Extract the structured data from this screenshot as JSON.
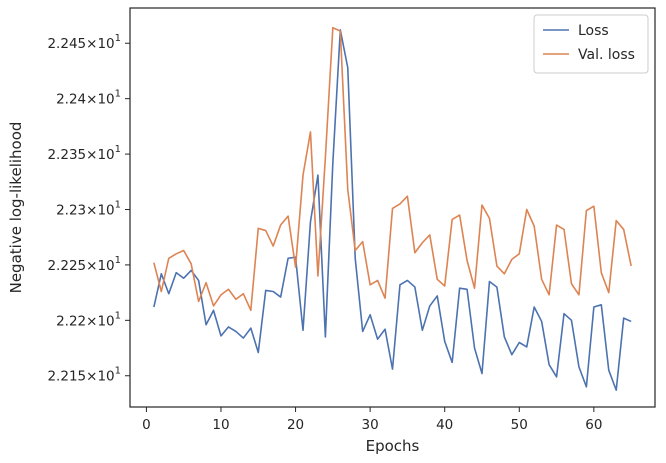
{
  "chart_data": {
    "type": "line",
    "xlabel": "Epochs",
    "ylabel": "Negative log-likelihood",
    "xlim": [
      -2.2,
      68.2
    ],
    "ylim": [
      22.1218,
      22.4818
    ],
    "xticks": [
      0,
      10,
      20,
      30,
      40,
      50,
      60
    ],
    "yticks": [
      {
        "value": 22.15,
        "mantissa": "2.215",
        "base": "10",
        "exp": "1"
      },
      {
        "value": 22.2,
        "mantissa": "2.22",
        "base": "10",
        "exp": "1"
      },
      {
        "value": 22.25,
        "mantissa": "2.225",
        "base": "10",
        "exp": "1"
      },
      {
        "value": 22.3,
        "mantissa": "2.23",
        "base": "10",
        "exp": "1"
      },
      {
        "value": 22.35,
        "mantissa": "2.235",
        "base": "10",
        "exp": "1"
      },
      {
        "value": 22.4,
        "mantissa": "2.24",
        "base": "10",
        "exp": "1"
      },
      {
        "value": 22.45,
        "mantissa": "2.245",
        "base": "10",
        "exp": "1"
      }
    ],
    "grid": false,
    "legend_position": "top-right",
    "x": [
      1,
      2,
      3,
      4,
      5,
      6,
      7,
      8,
      9,
      10,
      11,
      12,
      13,
      14,
      15,
      16,
      17,
      18,
      19,
      20,
      21,
      22,
      23,
      24,
      25,
      26,
      27,
      28,
      29,
      30,
      31,
      32,
      33,
      34,
      35,
      36,
      37,
      38,
      39,
      40,
      41,
      42,
      43,
      44,
      45,
      46,
      47,
      48,
      49,
      50,
      51,
      52,
      53,
      54,
      55,
      56,
      57,
      58,
      59,
      60,
      61,
      62,
      63,
      64,
      65
    ],
    "series": [
      {
        "name": "Loss",
        "color": "#4c72b0",
        "values": [
          22.212,
          22.242,
          22.224,
          22.243,
          22.238,
          22.245,
          22.236,
          22.196,
          22.209,
          22.186,
          22.194,
          22.19,
          22.184,
          22.193,
          22.171,
          22.227,
          22.226,
          22.221,
          22.256,
          22.257,
          22.191,
          22.289,
          22.331,
          22.185,
          22.342,
          22.462,
          22.428,
          22.256,
          22.19,
          22.205,
          22.183,
          22.192,
          22.156,
          22.232,
          22.236,
          22.23,
          22.191,
          22.213,
          22.222,
          22.181,
          22.162,
          22.229,
          22.228,
          22.175,
          22.152,
          22.235,
          22.23,
          22.185,
          22.169,
          22.18,
          22.176,
          22.212,
          22.199,
          22.16,
          22.149,
          22.206,
          22.2,
          22.158,
          22.14,
          22.212,
          22.214,
          22.155,
          22.137,
          22.202,
          22.199
        ]
      },
      {
        "name": "Val. loss",
        "color": "#dd8452",
        "values": [
          22.252,
          22.226,
          22.256,
          22.26,
          22.263,
          22.251,
          22.217,
          22.234,
          22.213,
          22.223,
          22.228,
          22.219,
          22.224,
          22.209,
          22.283,
          22.281,
          22.267,
          22.286,
          22.294,
          22.248,
          22.331,
          22.37,
          22.24,
          22.347,
          22.464,
          22.461,
          22.318,
          22.263,
          22.271,
          22.232,
          22.236,
          22.22,
          22.301,
          22.305,
          22.312,
          22.261,
          22.27,
          22.277,
          22.237,
          22.231,
          22.291,
          22.295,
          22.254,
          22.229,
          22.304,
          22.292,
          22.249,
          22.242,
          22.255,
          22.26,
          22.3,
          22.285,
          22.237,
          22.223,
          22.286,
          22.282,
          22.233,
          22.223,
          22.299,
          22.303,
          22.243,
          22.225,
          22.29,
          22.282,
          22.249
        ]
      }
    ]
  }
}
